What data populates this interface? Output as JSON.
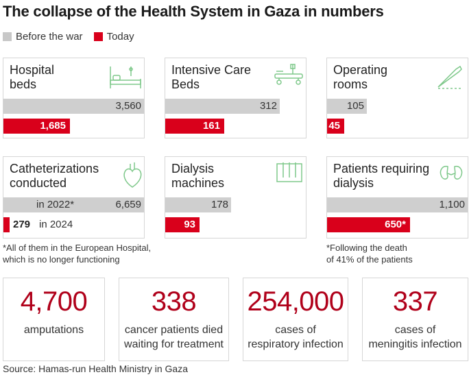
{
  "title": "The collapse of the Health System in Gaza in numbers",
  "legend": {
    "before": "Before the war",
    "today": "Today",
    "before_color": "#c8c8c8",
    "today_color": "#d9001b"
  },
  "chart_data": {
    "type": "bar",
    "title": "The collapse of the Health System in Gaza in numbers",
    "series": [
      {
        "name": "Before the war",
        "color": "#c8c8c8"
      },
      {
        "name": "Today",
        "color": "#d9001b"
      }
    ],
    "panels": [
      {
        "label": "Hospital beds",
        "before": 3560,
        "before_label": "3,560",
        "today": 1685,
        "today_label": "1,685"
      },
      {
        "label": "Intensive Care Beds",
        "before": 312,
        "before_label": "312",
        "today": 161,
        "today_label": "161"
      },
      {
        "label": "Operating rooms",
        "before": 105,
        "before_label": "105",
        "today": 45,
        "today_label": "45"
      },
      {
        "label": "Catheterizations conducted",
        "before": 6659,
        "before_label": "6,659",
        "before_note": "in 2022*",
        "today": 279,
        "today_label": "279",
        "today_note": "in 2024"
      },
      {
        "label": "Dialysis machines",
        "before": 178,
        "before_label": "178",
        "today": 93,
        "today_label": "93"
      },
      {
        "label": "Patients requiring dialysis",
        "before": 1100,
        "before_label": "1,100",
        "today": 650,
        "today_label": "650*"
      }
    ]
  },
  "panels": {
    "hospital": {
      "line1": "Hospital",
      "line2": "beds",
      "before": "3,560",
      "today": "1,685"
    },
    "icu": {
      "line1": "Intensive Care",
      "line2": "Beds",
      "before": "312",
      "today": "161"
    },
    "operating": {
      "line1": "Operating",
      "line2": "rooms",
      "before": "105",
      "today": "45"
    },
    "cath": {
      "line1": "Catheterizations",
      "line2": "conducted",
      "before": "6,659",
      "before_note": "in 2022*",
      "today": "279",
      "today_note": "in 2024"
    },
    "dialysis_machines": {
      "line1": "Dialysis",
      "line2": "machines",
      "before": "178",
      "today": "93"
    },
    "dialysis_patients": {
      "line1": "Patients requiring",
      "line2": "dialysis",
      "before": "1,100",
      "today": "650*"
    }
  },
  "notes": {
    "cath_line1": "*All of them in the European Hospital,",
    "cath_line2": "which is no longer functioning",
    "dialysis_line1": "*Following the death",
    "dialysis_line2": "of 41% of the patients"
  },
  "stats": [
    {
      "number": "4,700",
      "line1": "amputations",
      "line2": ""
    },
    {
      "number": "338",
      "line1": "cancer patients died",
      "line2": "waiting for treatment"
    },
    {
      "number": "254,000",
      "line1": "cases of",
      "line2": "respiratory infection"
    },
    {
      "number": "337",
      "line1": "cases of",
      "line2": "meningitis infection"
    }
  ],
  "source": "Source: Hamas-run Health Ministry in Gaza",
  "colors": {
    "icon_green": "#7ec88a",
    "stat_red": "#b0001a"
  }
}
